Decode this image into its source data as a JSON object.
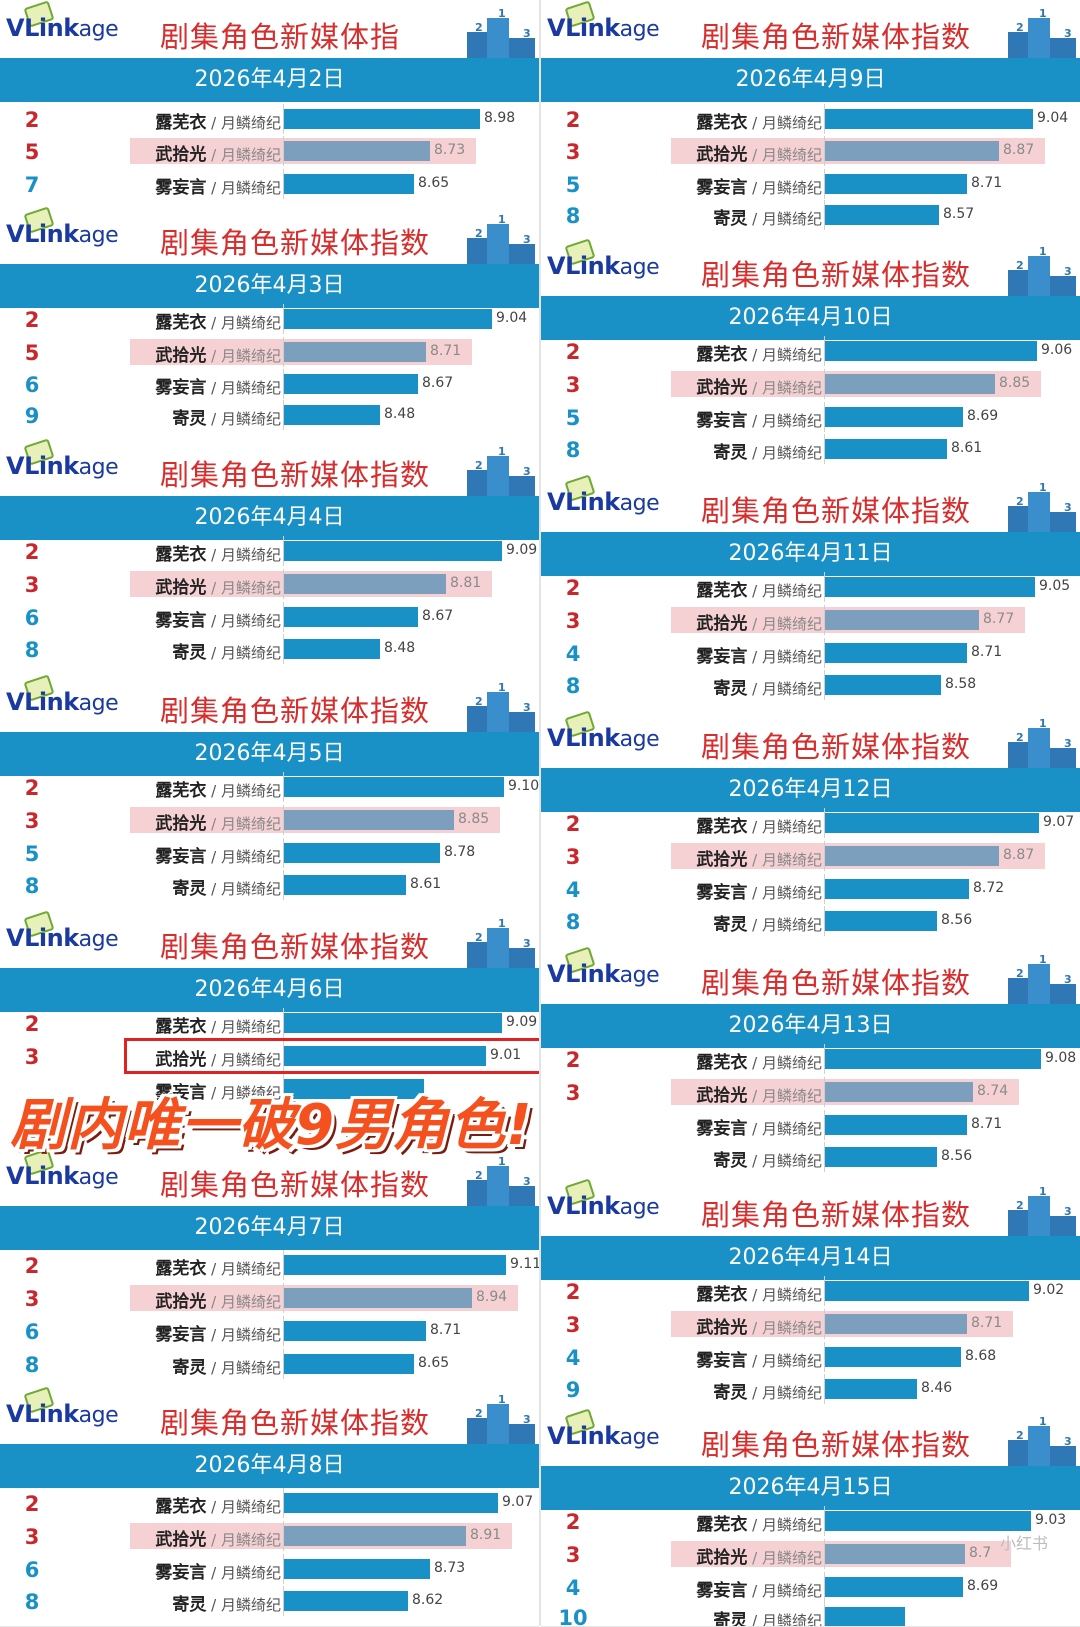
{
  "logo_text": [
    "VL",
    "ink",
    "age"
  ],
  "header_title": "剧集角色新媒体指数",
  "header_title_truncated": "剧集角色新媒体指",
  "drama": "月鳞绮纪",
  "overlay_text": "剧内唯一破9男角色!",
  "watermark": "小红书",
  "colors": {
    "bar": "#1a91c6",
    "bar_highlight": "#7c9fbd",
    "highlight_bg": "#f6d1d3",
    "title_red": "#d62d2d",
    "rank_red": "#c8282c",
    "band": "#1a91c6",
    "overlay": "#f4511e"
  },
  "chart_data": [
    {
      "type": "bar",
      "date": "2026年4月2日",
      "rows": [
        {
          "rank": "2",
          "name": "露芜衣",
          "value": 8.98
        },
        {
          "rank": "5",
          "name": "武拾光",
          "value": 8.73,
          "highlight": true
        },
        {
          "rank": "7",
          "name": "雾妄言",
          "value": 8.65
        }
      ]
    },
    {
      "type": "bar",
      "date": "2026年4月3日",
      "rows": [
        {
          "rank": "2",
          "name": "露芜衣",
          "value": 9.04
        },
        {
          "rank": "5",
          "name": "武拾光",
          "value": 8.71,
          "highlight": true
        },
        {
          "rank": "6",
          "name": "雾妄言",
          "value": 8.67
        },
        {
          "rank": "9",
          "name": "寄灵",
          "value": 8.48
        }
      ]
    },
    {
      "type": "bar",
      "date": "2026年4月4日",
      "rows": [
        {
          "rank": "2",
          "name": "露芜衣",
          "value": 9.09
        },
        {
          "rank": "3",
          "name": "武拾光",
          "value": 8.81,
          "highlight": true
        },
        {
          "rank": "6",
          "name": "雾妄言",
          "value": 8.67
        },
        {
          "rank": "8",
          "name": "寄灵",
          "value": 8.48
        }
      ]
    },
    {
      "type": "bar",
      "date": "2026年4月5日",
      "rows": [
        {
          "rank": "2",
          "name": "露芜衣",
          "value": 9.1
        },
        {
          "rank": "3",
          "name": "武拾光",
          "value": 8.85,
          "highlight": true
        },
        {
          "rank": "5",
          "name": "雾妄言",
          "value": 8.78
        },
        {
          "rank": "8",
          "name": "寄灵",
          "value": 8.61
        }
      ]
    },
    {
      "type": "bar",
      "date": "2026年4月6日",
      "rows": [
        {
          "rank": "2",
          "name": "露芜衣",
          "value": 9.09
        },
        {
          "rank": "3",
          "name": "武拾光",
          "value": 9.01,
          "boxed": true
        },
        {
          "rank": "",
          "name": "雾妄言",
          "value": 8.7,
          "partial": true
        }
      ]
    },
    {
      "type": "bar",
      "date": "2026年4月7日",
      "rows": [
        {
          "rank": "2",
          "name": "露芜衣",
          "value": 9.11
        },
        {
          "rank": "3",
          "name": "武拾光",
          "value": 8.94,
          "highlight": true
        },
        {
          "rank": "6",
          "name": "雾妄言",
          "value": 8.71
        },
        {
          "rank": "8",
          "name": "寄灵",
          "value": 8.65
        }
      ]
    },
    {
      "type": "bar",
      "date": "2026年4月8日",
      "rows": [
        {
          "rank": "2",
          "name": "露芜衣",
          "value": 9.07
        },
        {
          "rank": "3",
          "name": "武拾光",
          "value": 8.91,
          "highlight": true
        },
        {
          "rank": "6",
          "name": "雾妄言",
          "value": 8.73
        },
        {
          "rank": "8",
          "name": "寄灵",
          "value": 8.62
        }
      ]
    },
    {
      "type": "bar",
      "date": "2026年4月9日",
      "rows": [
        {
          "rank": "2",
          "name": "露芜衣",
          "value": 9.04
        },
        {
          "rank": "3",
          "name": "武拾光",
          "value": 8.87,
          "highlight": true
        },
        {
          "rank": "5",
          "name": "雾妄言",
          "value": 8.71
        },
        {
          "rank": "8",
          "name": "寄灵",
          "value": 8.57
        }
      ]
    },
    {
      "type": "bar",
      "date": "2026年4月10日",
      "rows": [
        {
          "rank": "2",
          "name": "露芜衣",
          "value": 9.06
        },
        {
          "rank": "3",
          "name": "武拾光",
          "value": 8.85,
          "highlight": true
        },
        {
          "rank": "5",
          "name": "雾妄言",
          "value": 8.69
        },
        {
          "rank": "8",
          "name": "寄灵",
          "value": 8.61
        }
      ]
    },
    {
      "type": "bar",
      "date": "2026年4月11日",
      "rows": [
        {
          "rank": "2",
          "name": "露芜衣",
          "value": 9.05
        },
        {
          "rank": "3",
          "name": "武拾光",
          "value": 8.77,
          "highlight": true
        },
        {
          "rank": "4",
          "name": "雾妄言",
          "value": 8.71
        },
        {
          "rank": "8",
          "name": "寄灵",
          "value": 8.58
        }
      ]
    },
    {
      "type": "bar",
      "date": "2026年4月12日",
      "rows": [
        {
          "rank": "2",
          "name": "露芜衣",
          "value": 9.07
        },
        {
          "rank": "3",
          "name": "武拾光",
          "value": 8.87,
          "highlight": true
        },
        {
          "rank": "4",
          "name": "雾妄言",
          "value": 8.72
        },
        {
          "rank": "8",
          "name": "寄灵",
          "value": 8.56
        }
      ]
    },
    {
      "type": "bar",
      "date": "2026年4月13日",
      "rows": [
        {
          "rank": "2",
          "name": "露芜衣",
          "value": 9.08
        },
        {
          "rank": "3",
          "name": "武拾光",
          "value": 8.74,
          "highlight": true
        },
        {
          "rank": "",
          "name": "雾妄言",
          "value": 8.71
        },
        {
          "rank": "",
          "name": "寄灵",
          "value": 8.56
        }
      ]
    },
    {
      "type": "bar",
      "date": "2026年4月14日",
      "rows": [
        {
          "rank": "2",
          "name": "露芜衣",
          "value": 9.02
        },
        {
          "rank": "3",
          "name": "武拾光",
          "value": 8.71,
          "highlight": true
        },
        {
          "rank": "4",
          "name": "雾妄言",
          "value": 8.68
        },
        {
          "rank": "9",
          "name": "寄灵",
          "value": 8.46
        }
      ]
    },
    {
      "type": "bar",
      "date": "2026年4月15日",
      "rows": [
        {
          "rank": "2",
          "name": "露芜衣",
          "value": 9.03
        },
        {
          "rank": "3",
          "name": "武拾光",
          "value": 8.7,
          "highlight": true,
          "label": "8.7"
        },
        {
          "rank": "4",
          "name": "雾妄言",
          "value": 8.69
        },
        {
          "rank": "10",
          "name": "寄灵",
          "value": 8.4,
          "label": ""
        }
      ]
    }
  ]
}
